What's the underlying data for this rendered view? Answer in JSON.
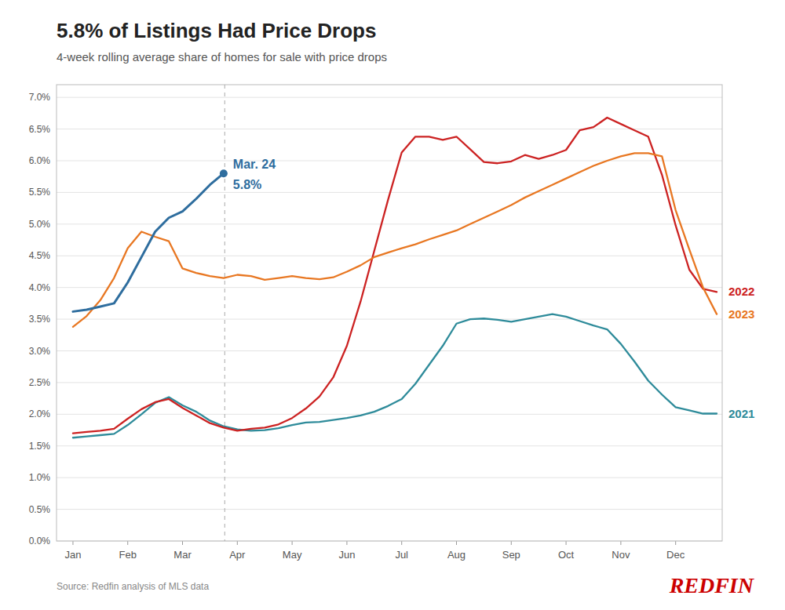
{
  "chart_data": {
    "type": "line",
    "title": "5.8% of Listings Had Price Drops",
    "subtitle": "4-week rolling average share of homes for sale with price drops",
    "source": "Source: Redfin analysis of MLS data",
    "brand": "REDFIN",
    "brand_color": "#cc0000",
    "annotations": [
      "Mar. 24",
      "5.8%"
    ],
    "vline_x": 2.77,
    "grid": true,
    "xlim": [
      -0.3,
      11.85
    ],
    "xticks": [
      {
        "value": 0,
        "label": "Jan"
      },
      {
        "value": 1,
        "label": "Feb"
      },
      {
        "value": 2,
        "label": "Mar"
      },
      {
        "value": 3,
        "label": "Apr"
      },
      {
        "value": 4,
        "label": "May"
      },
      {
        "value": 5,
        "label": "Jun"
      },
      {
        "value": 6,
        "label": "Jul"
      },
      {
        "value": 7,
        "label": "Aug"
      },
      {
        "value": 8,
        "label": "Sep"
      },
      {
        "value": 9,
        "label": "Oct"
      },
      {
        "value": 10,
        "label": "Nov"
      },
      {
        "value": 11,
        "label": "Dec"
      }
    ],
    "ylim": [
      0.0,
      0.072
    ],
    "yticks": [
      {
        "value": 0.0,
        "label": "0.0%"
      },
      {
        "value": 0.005,
        "label": "0.5%"
      },
      {
        "value": 0.01,
        "label": "1.0%"
      },
      {
        "value": 0.015,
        "label": "1.5%"
      },
      {
        "value": 0.02,
        "label": "2.0%"
      },
      {
        "value": 0.025,
        "label": "2.5%"
      },
      {
        "value": 0.03,
        "label": "3.0%"
      },
      {
        "value": 0.035,
        "label": "3.5%"
      },
      {
        "value": 0.04,
        "label": "4.0%"
      },
      {
        "value": 0.045,
        "label": "4.5%"
      },
      {
        "value": 0.05,
        "label": "5.0%"
      },
      {
        "value": 0.055,
        "label": "5.5%"
      },
      {
        "value": 0.06,
        "label": "6.0%"
      },
      {
        "value": 0.065,
        "label": "6.5%"
      },
      {
        "value": 0.07,
        "label": "7.0%"
      }
    ],
    "series": [
      {
        "name": "2021",
        "color": "#2e8b9a",
        "x": [
          0,
          0.25,
          0.5,
          0.75,
          1.0,
          1.25,
          1.5,
          1.75,
          2.0,
          2.25,
          2.5,
          2.75,
          3.0,
          3.25,
          3.5,
          3.75,
          4.0,
          4.25,
          4.5,
          4.75,
          5.0,
          5.25,
          5.5,
          5.75,
          6.0,
          6.25,
          6.5,
          6.75,
          7.0,
          7.25,
          7.5,
          7.75,
          8.0,
          8.25,
          8.5,
          8.75,
          9.0,
          9.25,
          9.5,
          9.75,
          10.0,
          10.25,
          10.5,
          10.75,
          11.0,
          11.25,
          11.5,
          11.75
        ],
        "values": [
          0.0163,
          0.0165,
          0.0167,
          0.0169,
          0.0183,
          0.02,
          0.0218,
          0.0227,
          0.0214,
          0.0204,
          0.019,
          0.0181,
          0.0176,
          0.0174,
          0.0175,
          0.0178,
          0.0183,
          0.0187,
          0.0188,
          0.0191,
          0.0194,
          0.0198,
          0.0204,
          0.0213,
          0.0224,
          0.0248,
          0.0278,
          0.0308,
          0.0343,
          0.035,
          0.0351,
          0.0349,
          0.0346,
          0.035,
          0.0354,
          0.0358,
          0.0354,
          0.0347,
          0.034,
          0.0334,
          0.0311,
          0.0283,
          0.0253,
          0.0231,
          0.0211,
          0.0206,
          0.0201,
          0.0201
        ]
      },
      {
        "name": "2022",
        "color": "#cc2222",
        "x": [
          0,
          0.25,
          0.5,
          0.75,
          1.0,
          1.25,
          1.5,
          1.75,
          2.0,
          2.25,
          2.5,
          2.75,
          3.0,
          3.25,
          3.5,
          3.75,
          4.0,
          4.25,
          4.5,
          4.75,
          5.0,
          5.25,
          5.5,
          5.75,
          6.0,
          6.25,
          6.5,
          6.75,
          7.0,
          7.25,
          7.5,
          7.75,
          8.0,
          8.25,
          8.5,
          8.75,
          9.0,
          9.25,
          9.5,
          9.75,
          10.0,
          10.25,
          10.5,
          10.75,
          11.0,
          11.25,
          11.5,
          11.75
        ],
        "values": [
          0.017,
          0.0172,
          0.0174,
          0.0177,
          0.0193,
          0.0208,
          0.0219,
          0.0224,
          0.021,
          0.0198,
          0.0186,
          0.0179,
          0.0174,
          0.0177,
          0.0179,
          0.0184,
          0.0194,
          0.0209,
          0.0228,
          0.0258,
          0.0308,
          0.0378,
          0.0458,
          0.0538,
          0.0613,
          0.0638,
          0.0638,
          0.0633,
          0.0638,
          0.0618,
          0.0598,
          0.0596,
          0.0599,
          0.0609,
          0.0603,
          0.0609,
          0.0617,
          0.0648,
          0.0653,
          0.0668,
          0.0658,
          0.0648,
          0.0638,
          0.0578,
          0.0498,
          0.0428,
          0.0398,
          0.0393
        ]
      },
      {
        "name": "2023",
        "color": "#e87722",
        "x": [
          0,
          0.25,
          0.5,
          0.75,
          1.0,
          1.25,
          1.5,
          1.75,
          2.0,
          2.25,
          2.5,
          2.75,
          3.0,
          3.25,
          3.5,
          3.75,
          4.0,
          4.25,
          4.5,
          4.75,
          5.0,
          5.25,
          5.5,
          5.75,
          6.0,
          6.25,
          6.5,
          6.75,
          7.0,
          7.25,
          7.5,
          7.75,
          8.0,
          8.25,
          8.5,
          8.75,
          9.0,
          9.25,
          9.5,
          9.75,
          10.0,
          10.25,
          10.5,
          10.75,
          11.0,
          11.25,
          11.5,
          11.75
        ],
        "values": [
          0.0338,
          0.0355,
          0.038,
          0.0415,
          0.0462,
          0.0488,
          0.048,
          0.0473,
          0.043,
          0.0423,
          0.0418,
          0.0415,
          0.042,
          0.0418,
          0.0412,
          0.0415,
          0.0418,
          0.0415,
          0.0413,
          0.0416,
          0.0425,
          0.0435,
          0.0448,
          0.0455,
          0.0462,
          0.0468,
          0.0476,
          0.0483,
          0.049,
          0.05,
          0.051,
          0.052,
          0.053,
          0.0542,
          0.0552,
          0.0562,
          0.0572,
          0.0582,
          0.0592,
          0.06,
          0.0607,
          0.0612,
          0.0612,
          0.0607,
          0.0522,
          0.046,
          0.04,
          0.0358
        ]
      },
      {
        "color": "#2e6d9e",
        "x": [
          0,
          0.25,
          0.5,
          0.75,
          1.0,
          1.25,
          1.5,
          1.75,
          2.0,
          2.25,
          2.5,
          2.75
        ],
        "values": [
          0.0362,
          0.0365,
          0.037,
          0.0375,
          0.0408,
          0.0448,
          0.0488,
          0.051,
          0.052,
          0.054,
          0.0562,
          0.058
        ]
      }
    ]
  }
}
